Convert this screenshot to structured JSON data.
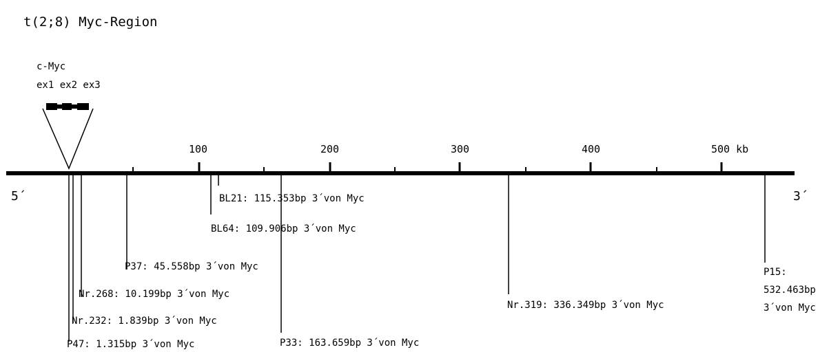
{
  "title": "t(2;8) Myc-Region",
  "gene": {
    "name": "c-Myc",
    "exons": "ex1 ex2 ex3"
  },
  "axis": {
    "left_end": "5´",
    "right_end": "3´",
    "tick_labels": [
      "100",
      "200",
      "300",
      "400",
      "500 kb"
    ]
  },
  "breakpoints": [
    {
      "id": "p47",
      "label": "P47: 1.315bp 3´von Myc"
    },
    {
      "id": "nr232",
      "label": "Nr.232: 1.839bp 3´von Myc"
    },
    {
      "id": "nr268",
      "label": "Nr.268: 10.199bp 3´von Myc"
    },
    {
      "id": "p37",
      "label": "P37: 45.558bp 3´von Myc"
    },
    {
      "id": "bl64",
      "label": "BL64: 109.906bp 3´von Myc"
    },
    {
      "id": "bl21",
      "label": "BL21: 115.353bp 3´von Myc"
    },
    {
      "id": "p33",
      "label": "P33: 163.659bp 3´von Myc"
    },
    {
      "id": "nr319",
      "label": "Nr.319: 336.349bp 3´von Myc"
    },
    {
      "id": "p15",
      "label_lines": [
        "P15:",
        "532.463bp",
        "3´von Myc"
      ]
    }
  ]
}
